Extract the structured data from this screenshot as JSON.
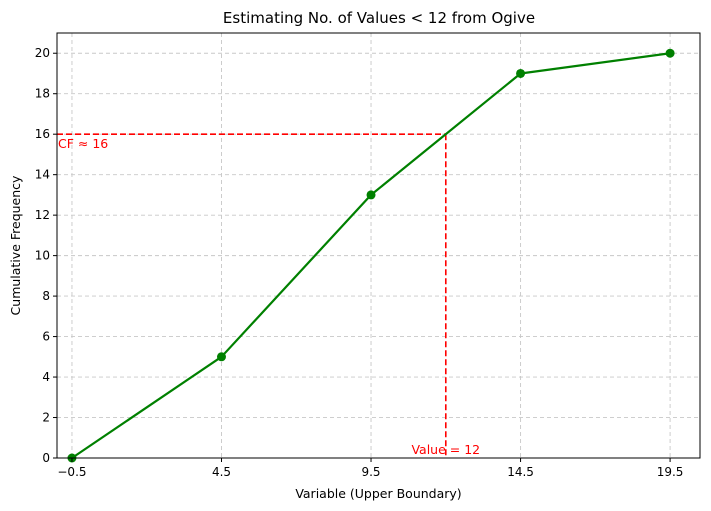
{
  "chart_data": {
    "type": "line",
    "title": "Estimating No. of Values < 12 from Ogive",
    "xlabel": "Variable (Upper Boundary)",
    "ylabel": "Cumulative Frequency",
    "x": [
      -0.5,
      4.5,
      9.5,
      14.5,
      19.5
    ],
    "x_tick_labels": [
      "−0.5",
      "4.5",
      "9.5",
      "14.5",
      "19.5"
    ],
    "xlim": [
      -1.0,
      20.5
    ],
    "ylim": [
      0,
      21
    ],
    "y_ticks": [
      0,
      2,
      4,
      6,
      8,
      10,
      12,
      14,
      16,
      18,
      20
    ],
    "grid": true,
    "series": [
      {
        "values": [
          0,
          5,
          13,
          19,
          20
        ],
        "color": "#008000",
        "marker": "circle"
      }
    ],
    "estimate": {
      "x": 12,
      "y": 16,
      "color": "#ff0000",
      "x_annotation": "Value = 12",
      "y_annotation": "CF ≈ 16"
    }
  }
}
